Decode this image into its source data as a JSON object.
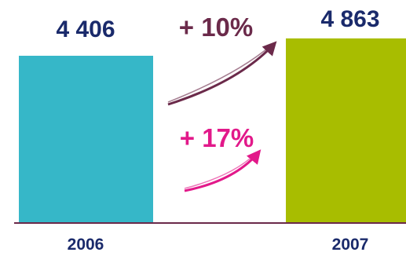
{
  "chart_data": {
    "type": "bar",
    "categories": [
      "2006",
      "2007"
    ],
    "values": [
      4406,
      4863
    ],
    "value_labels": [
      "4 406",
      "4 863"
    ],
    "bar_colors": [
      "#36b7c8",
      "#a8bd00"
    ],
    "axis_color": "#6b2a4a",
    "title": "",
    "xlabel": "",
    "ylabel": "",
    "grid": false,
    "annotations": [
      {
        "text": "+ 10%",
        "color": "#6b2a4a"
      },
      {
        "text": "+ 17%",
        "color": "#e2198a"
      }
    ]
  }
}
